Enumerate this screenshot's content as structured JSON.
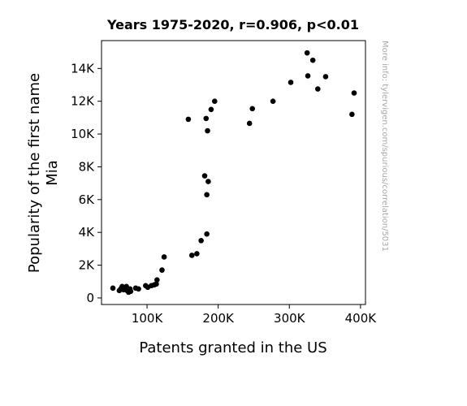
{
  "chart_data": {
    "type": "scatter",
    "title": "Years 1975-2020, r=0.906, p<0.01",
    "xlabel": "Patents granted in the US",
    "ylabel_lines": [
      "Popularity of the first name",
      "Mia"
    ],
    "side_note": "More info: tylervigen.com/spurious/correlation/5031",
    "xlim": [
      36000,
      407000
    ],
    "ylim": [
      -400,
      15700
    ],
    "x_ticks": [
      {
        "value": 100000,
        "label": "100K"
      },
      {
        "value": 200000,
        "label": "200K"
      },
      {
        "value": 300000,
        "label": "300K"
      },
      {
        "value": 400000,
        "label": "400K"
      }
    ],
    "y_ticks": [
      {
        "value": 0,
        "label": "0"
      },
      {
        "value": 2000,
        "label": "2K"
      },
      {
        "value": 4000,
        "label": "4K"
      },
      {
        "value": 6000,
        "label": "6K"
      },
      {
        "value": 8000,
        "label": "8K"
      },
      {
        "value": 10000,
        "label": "10K"
      },
      {
        "value": 12000,
        "label": "12K"
      },
      {
        "value": 14000,
        "label": "14K"
      }
    ],
    "grid": false,
    "marker_color": "#000000",
    "points": [
      [
        52000,
        600
      ],
      [
        61000,
        450
      ],
      [
        63000,
        550
      ],
      [
        65000,
        700
      ],
      [
        67000,
        500
      ],
      [
        69000,
        600
      ],
      [
        71000,
        700
      ],
      [
        72000,
        450
      ],
      [
        74000,
        350
      ],
      [
        76000,
        550
      ],
      [
        77000,
        400
      ],
      [
        84000,
        600
      ],
      [
        88000,
        550
      ],
      [
        98000,
        750
      ],
      [
        101000,
        650
      ],
      [
        106000,
        750
      ],
      [
        110000,
        800
      ],
      [
        113000,
        850
      ],
      [
        114000,
        1100
      ],
      [
        121000,
        1700
      ],
      [
        124000,
        2500
      ],
      [
        158000,
        10900
      ],
      [
        163000,
        2600
      ],
      [
        170000,
        2700
      ],
      [
        176000,
        3500
      ],
      [
        181000,
        7450
      ],
      [
        183000,
        10950
      ],
      [
        184000,
        3900
      ],
      [
        184000,
        6300
      ],
      [
        185000,
        10200
      ],
      [
        186000,
        7100
      ],
      [
        190000,
        11500
      ],
      [
        195000,
        12000
      ],
      [
        244000,
        10650
      ],
      [
        248000,
        11550
      ],
      [
        277000,
        12000
      ],
      [
        302000,
        13150
      ],
      [
        325000,
        14950
      ],
      [
        326000,
        13550
      ],
      [
        333000,
        14500
      ],
      [
        340000,
        12750
      ],
      [
        351000,
        13500
      ],
      [
        388000,
        11200
      ],
      [
        391000,
        12500
      ]
    ]
  }
}
